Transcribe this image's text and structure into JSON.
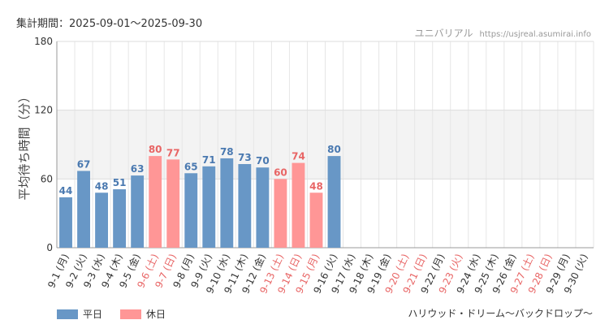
{
  "header": {
    "period": "集計期間：2025-09-01～2025-09-30",
    "credit_name": "ユニバリアル",
    "credit_site": "https://usjreal.asumirai.info"
  },
  "footer": {
    "attraction": "ハリウッド・ドリーム～バックドロップ～"
  },
  "legend": {
    "weekday_label": "平日",
    "holiday_label": "休日"
  },
  "colors": {
    "weekday": "#6897c6",
    "holiday": "#ff9696",
    "weekday_text": "#4a79b0",
    "holiday_text": "#e86565",
    "band": "#f3f3f3"
  },
  "chart_data": {
    "type": "bar",
    "ylabel": "平均待ち時間（分）",
    "ylim": [
      0,
      180
    ],
    "yticks": [
      0,
      60,
      120,
      180
    ],
    "highlight_band": [
      60,
      120
    ],
    "categories": [
      "9-1 (月)",
      "9-2 (火)",
      "9-3 (水)",
      "9-4 (木)",
      "9-5 (金)",
      "9-6 (土)",
      "9-7 (日)",
      "9-8 (月)",
      "9-9 (火)",
      "9-10 (水)",
      "9-11 (木)",
      "9-12 (金)",
      "9-13 (土)",
      "9-14 (日)",
      "9-15 (月)",
      "9-16 (火)",
      "9-17 (水)",
      "9-18 (木)",
      "9-19 (金)",
      "9-20 (土)",
      "9-21 (日)",
      "9-22 (月)",
      "9-23 (火)",
      "9-24 (水)",
      "9-25 (木)",
      "9-26 (金)",
      "9-27 (土)",
      "9-28 (日)",
      "9-29 (月)",
      "9-30 (火)"
    ],
    "holiday": [
      false,
      false,
      false,
      false,
      false,
      true,
      true,
      false,
      false,
      false,
      false,
      false,
      true,
      true,
      true,
      false,
      false,
      false,
      false,
      true,
      true,
      false,
      true,
      false,
      false,
      false,
      true,
      true,
      false,
      false
    ],
    "values": [
      44,
      67,
      48,
      51,
      63,
      80,
      77,
      65,
      71,
      78,
      73,
      70,
      60,
      74,
      48,
      80,
      null,
      null,
      null,
      null,
      null,
      null,
      null,
      null,
      null,
      null,
      null,
      null,
      null,
      null
    ]
  }
}
